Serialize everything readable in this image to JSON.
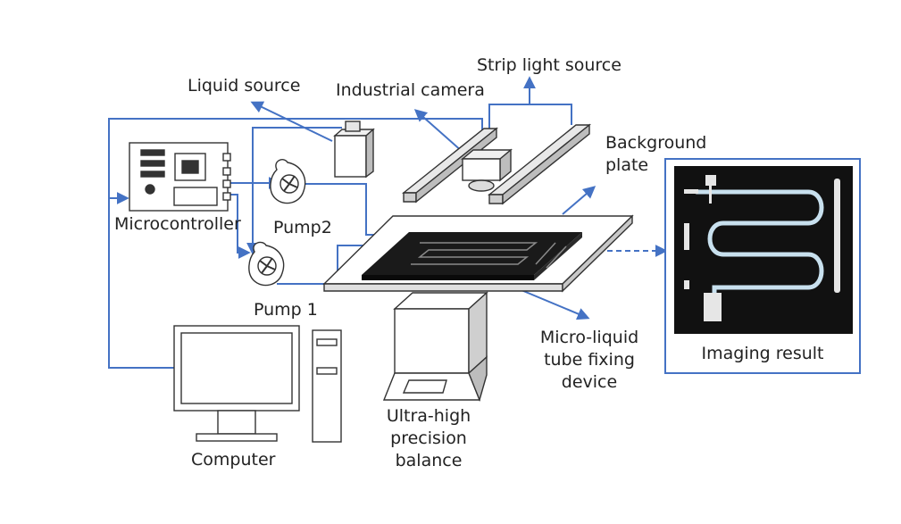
{
  "colors": {
    "connector": "#4472C4",
    "outline": "#333333",
    "device": "#1a1a1a",
    "imaging_bg": "#111111",
    "imaging_tube": "#c8e0ee"
  },
  "labels": {
    "liquid_source": "Liquid source",
    "industrial_camera": "Industrial camera",
    "strip_light_source": "Strip light source",
    "background_plate": "Background\nplate",
    "microcontroller": "Microcontroller",
    "pump2": "Pump2",
    "pump1": "Pump 1",
    "micro_liquid_device": "Micro-liquid\ntube fixing\ndevice",
    "imaging_result": "Imaging result",
    "computer": "Computer",
    "balance": "Ultra-high\nprecision\nbalance"
  },
  "icons": [
    "microcontroller-board-icon",
    "pump-icon",
    "camera-icon",
    "liquid-source-bottle-icon",
    "computer-monitor-icon",
    "computer-tower-icon",
    "balance-icon"
  ]
}
